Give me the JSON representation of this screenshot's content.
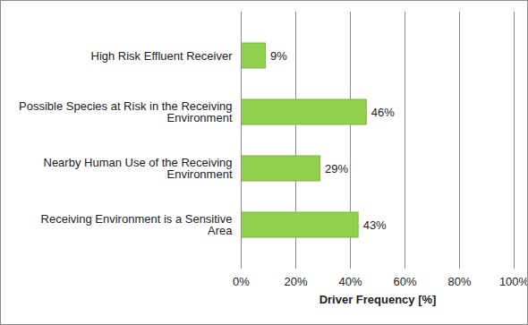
{
  "chart_data": {
    "type": "bar",
    "orientation": "horizontal",
    "categories": [
      "High Risk Effluent Receiver",
      "Possible Species at Risk in the Receiving Environment",
      "Nearby Human Use of the Receiving Environment",
      "Receiving Environment is a Sensitive Area"
    ],
    "values": [
      9,
      46,
      29,
      43
    ],
    "value_labels": [
      "9%",
      "46%",
      "29%",
      "43%"
    ],
    "data_labels": true,
    "color": "#92d050",
    "xlabel": "Driver Frequency [%]",
    "xlim": [
      0,
      100
    ],
    "xticks": [
      {
        "value": 0,
        "label": "0%"
      },
      {
        "value": 20,
        "label": "20%"
      },
      {
        "value": 40,
        "label": "40%"
      },
      {
        "value": 60,
        "label": "60%"
      },
      {
        "value": 80,
        "label": "80%"
      },
      {
        "value": 100,
        "label": "100%"
      }
    ],
    "grid": true
  }
}
